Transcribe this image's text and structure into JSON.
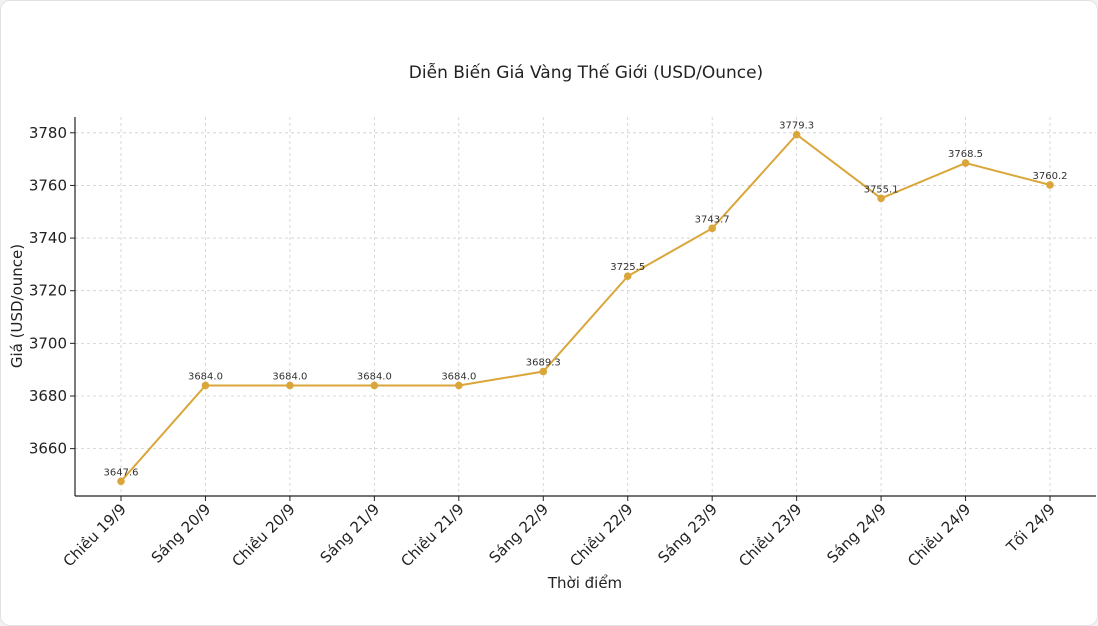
{
  "chart_data": {
    "type": "line",
    "title": "Diễn Biến Giá Vàng Thế Giới (USD/Ounce)",
    "xlabel": "Thời điểm",
    "ylabel": "Giá (USD/ounce)",
    "categories": [
      "Chiều 19/9",
      "Sáng 20/9",
      "Chiều 20/9",
      "Sáng 21/9",
      "Chiều 21/9",
      "Sáng 22/9",
      "Chiều 22/9",
      "Sáng 23/9",
      "Chiều 23/9",
      "Sáng 24/9",
      "Chiều 24/9",
      "Tối 24/9"
    ],
    "values": [
      3647.6,
      3684.0,
      3684.0,
      3684.0,
      3684.0,
      3689.3,
      3725.5,
      3743.7,
      3779.3,
      3755.1,
      3768.5,
      3760.2
    ],
    "data_labels": [
      "3647.6",
      "3684.0",
      "3684.0",
      "3684.0",
      "3684.0",
      "3689.3",
      "3725.5",
      "3743.7",
      "3779.3",
      "3755.1",
      "3768.5",
      "3760.2"
    ],
    "yticks": [
      3660,
      3680,
      3700,
      3720,
      3740,
      3760,
      3780
    ],
    "ylim": [
      3642.0,
      3786.0
    ],
    "grid": true,
    "line_color": "#DAA639"
  }
}
